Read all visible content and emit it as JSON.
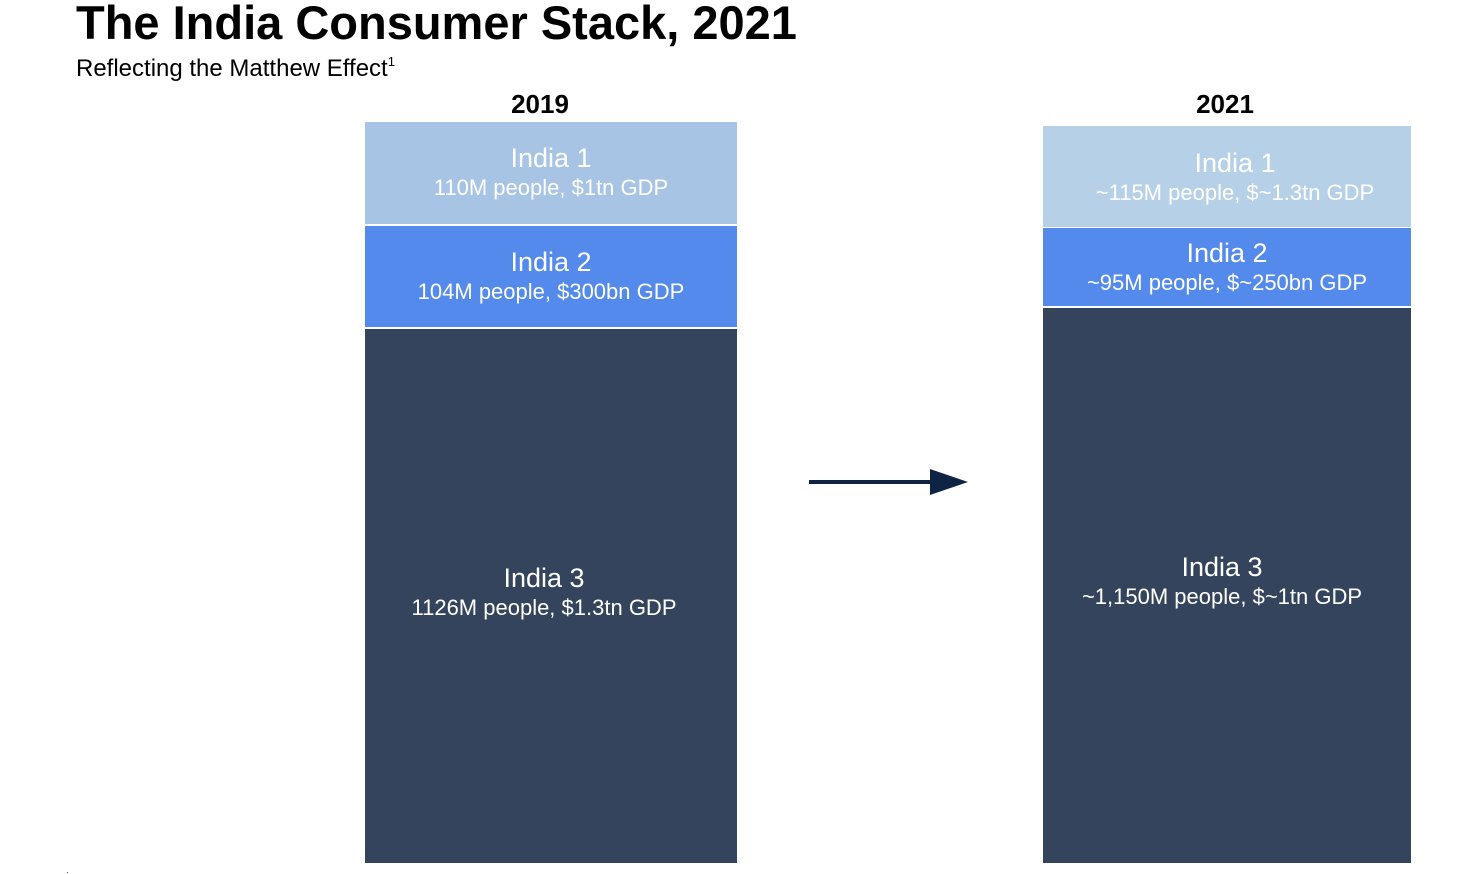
{
  "title": "The India Consumer Stack, 2021",
  "subtitle": {
    "text": "Reflecting the Matthew Effect",
    "footnote_marker": "1"
  },
  "colors": {
    "india1_2019": "#a7c4e4",
    "india1_2021": "#b6d0e8",
    "india2": "#538aec",
    "india3": "#35445d",
    "arrow": "#0f2344"
  },
  "stacks": [
    {
      "year": "2019",
      "segments": [
        {
          "name": "India 1",
          "desc": "110M people, $1tn GDP"
        },
        {
          "name": "India 2",
          "desc": "104M people, $300bn GDP"
        },
        {
          "name": "India 3",
          "desc": "1126M people, $1.3tn GDP"
        }
      ]
    },
    {
      "year": "2021",
      "segments": [
        {
          "name": "India 1",
          "desc": "~115M people, $~1.3tn GDP"
        },
        {
          "name": "India 2",
          "desc": "~95M people, $~250bn GDP"
        },
        {
          "name": "India 3",
          "desc": "~1,150M people, $~1tn GDP"
        }
      ]
    }
  ],
  "arrow_icon": "right-arrow-icon"
}
